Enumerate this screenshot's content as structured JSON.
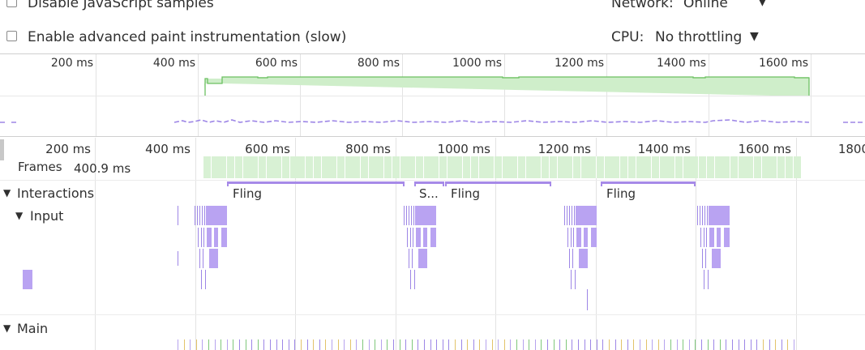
{
  "settings": {
    "disable_js_samples": "Disable JavaScript samples",
    "advanced_paint": "Enable advanced paint instrumentation (slow)",
    "network_label": "Network:",
    "network_value": "Online",
    "cpu_label": "CPU:",
    "cpu_value": "No throttling"
  },
  "overview": {
    "ticks": [
      "200 ms",
      "400 ms",
      "600 ms",
      "800 ms",
      "1000 ms",
      "1200 ms",
      "1400 ms",
      "1600 ms"
    ]
  },
  "timeline": {
    "ticks": [
      "200 ms",
      "400 ms",
      "600 ms",
      "800 ms",
      "1000 ms",
      "1200 ms",
      "1400 ms",
      "1600 ms",
      "1800"
    ],
    "frames_label": "Frames",
    "frames_value": "400.9 ms",
    "interactions_label": "Interactions",
    "input_label": "Input",
    "main_label": "Main",
    "interaction_labels": [
      "Fling",
      "S...",
      "Fling",
      "Fling"
    ]
  },
  "colors": {
    "fps_green": "#bfe8b9",
    "interaction_purple": "#a68ae8",
    "input_event": "#b9a3f2"
  }
}
